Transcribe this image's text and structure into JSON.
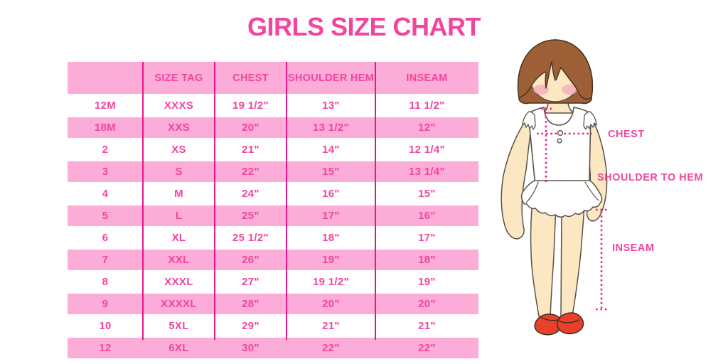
{
  "title": "GIRLS SIZE CHART",
  "colors": {
    "heading_pink": "#F2459E",
    "stripe_pink": "#FBACD7",
    "divider_magenta": "#E9158A",
    "dotted_line_pink": "#EA1D8C",
    "hair_brown": "#9D6036",
    "skin": "#FCE7C3",
    "blush": "#F3A8BE",
    "shoe_red": "#E8402A"
  },
  "chart_data": {
    "type": "table",
    "title": "GIRLS SIZE CHART",
    "columns": [
      "",
      "SIZE TAG",
      "CHEST",
      "SHOULDER HEM",
      "INSEAM"
    ],
    "rows": [
      [
        "12M",
        "XXXS",
        "19 1/2\"",
        "13\"",
        "11 1/2\""
      ],
      [
        "18M",
        "XXS",
        "20\"",
        "13 1/2\"",
        "12\""
      ],
      [
        "2",
        "XS",
        "21\"",
        "14\"",
        "12 1/4\""
      ],
      [
        "3",
        "S",
        "22\"",
        "15\"",
        "13 1/4\""
      ],
      [
        "4",
        "M",
        "24\"",
        "16\"",
        "15\""
      ],
      [
        "5",
        "L",
        "25\"",
        "17\"",
        "16\""
      ],
      [
        "6",
        "XL",
        "25 1/2\"",
        "18\"",
        "17\""
      ],
      [
        "7",
        "XXL",
        "26\"",
        "19\"",
        "18\""
      ],
      [
        "8",
        "XXXL",
        "27\"",
        "19 1/2\"",
        "19\""
      ],
      [
        "9",
        "XXXXL",
        "28\"",
        "20\"",
        "20\""
      ],
      [
        "10",
        "5XL",
        "29\"",
        "21\"",
        "21\""
      ],
      [
        "12",
        "6XL",
        "30\"",
        "22\"",
        "22\""
      ]
    ]
  },
  "diagram": {
    "labels": {
      "chest": "CHEST",
      "shoulder_to_hem": "SHOULDER TO HEM",
      "inseam": "INSEAM"
    }
  }
}
